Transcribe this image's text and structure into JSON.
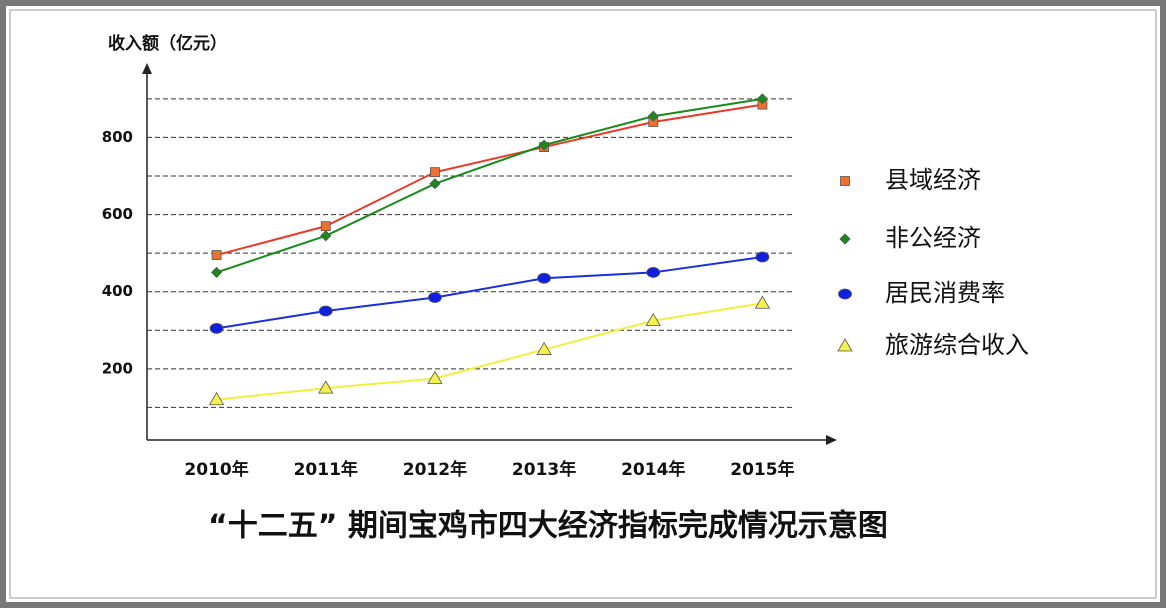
{
  "chart_data": {
    "type": "line",
    "title": "“十二五” 期间宝鸡市四大经济指标完成情况示意图",
    "y_label": "收入额（亿元）",
    "categories": [
      "2010年",
      "2011年",
      "2012年",
      "2013年",
      "2014年",
      "2015年"
    ],
    "series": [
      {
        "name": "县域经济",
        "color": "#e83a2b",
        "marker": "square",
        "marker_color": "#f07030",
        "values": [
          495,
          570,
          710,
          775,
          840,
          885
        ]
      },
      {
        "name": "非公经济",
        "color": "#1a8a1a",
        "marker": "diamond",
        "marker_color": "#1a8a1a",
        "values": [
          450,
          545,
          680,
          780,
          855,
          900
        ]
      },
      {
        "name": "居民消费率",
        "color": "#1a2fd6",
        "marker": "circle",
        "marker_color": "#1020e0",
        "values": [
          305,
          350,
          385,
          435,
          450,
          490
        ]
      },
      {
        "name": "旅游综合收入",
        "color": "#f0f040",
        "marker": "triangle",
        "marker_color": "#f5f050",
        "values": [
          120,
          150,
          175,
          250,
          325,
          370
        ]
      }
    ],
    "ylim": [
      0,
      980
    ],
    "yticks": [
      200,
      400,
      600,
      800
    ],
    "ygrid": [
      100,
      200,
      300,
      400,
      500,
      600,
      700,
      800,
      900
    ],
    "grid": true,
    "legend": "right"
  }
}
